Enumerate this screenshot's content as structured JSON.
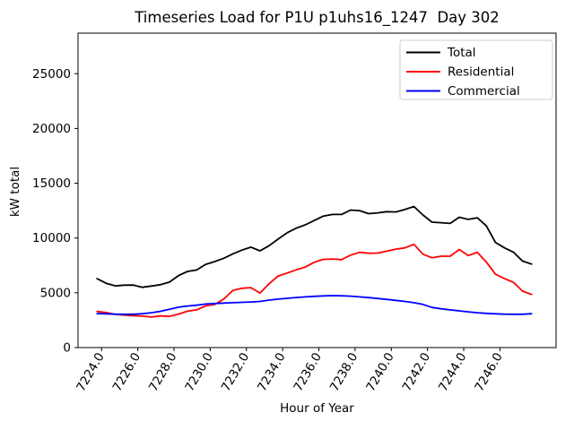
{
  "figure": {
    "title": "Timeseries Load for P1U p1uhs16_1247  Day 302",
    "xlabel": "Hour of Year",
    "ylabel": "kW total"
  },
  "chart_data": {
    "type": "line",
    "title": "Timeseries Load for P1U p1uhs16_1247  Day 302",
    "xlabel": "Hour of Year",
    "ylabel": "kW total",
    "grid": false,
    "legend_position": "upper right",
    "xlim": [
      7222.7,
      7249.1
    ],
    "ylim": [
      0,
      28700
    ],
    "x_tick_values": [
      7224,
      7226,
      7228,
      7230,
      7232,
      7234,
      7236,
      7238,
      7240,
      7242,
      7244,
      7246
    ],
    "x_tick_labels": [
      "7224.0",
      "7226.0",
      "7228.0",
      "7230.0",
      "7232.0",
      "7234.0",
      "7236.0",
      "7238.0",
      "7240.0",
      "7242.0",
      "7244.0",
      "7246.0"
    ],
    "y_tick_values": [
      0,
      5000,
      10000,
      15000,
      20000,
      25000
    ],
    "y_tick_labels": [
      "0",
      "5000",
      "10000",
      "15000",
      "20000",
      "25000"
    ],
    "x": [
      7223.75,
      7224.25,
      7224.75,
      7225.25,
      7225.75,
      7226.25,
      7226.75,
      7227.25,
      7227.75,
      7228.25,
      7228.75,
      7229.25,
      7229.75,
      7230.25,
      7230.75,
      7231.25,
      7231.75,
      7232.25,
      7232.75,
      7233.25,
      7233.75,
      7234.25,
      7234.75,
      7235.25,
      7235.75,
      7236.25,
      7236.75,
      7237.25,
      7237.75,
      7238.25,
      7238.75,
      7239.25,
      7239.75,
      7240.25,
      7240.75,
      7241.25,
      7241.75,
      7242.25,
      7242.75,
      7243.25,
      7243.75,
      7244.25,
      7244.75,
      7245.25,
      7245.75,
      7246.25,
      7246.75,
      7247.25,
      7247.75
    ],
    "series": [
      {
        "name": "Total",
        "color": "#000000",
        "values": [
          6300,
          5870,
          5630,
          5700,
          5710,
          5500,
          5620,
          5740,
          5980,
          6570,
          6950,
          7080,
          7600,
          7850,
          8150,
          8550,
          8900,
          9170,
          8830,
          9300,
          9900,
          10480,
          10900,
          11200,
          11600,
          12000,
          12150,
          12150,
          12550,
          12500,
          12220,
          12300,
          12400,
          12380,
          12600,
          12880,
          12100,
          11450,
          11400,
          11330,
          11900,
          11700,
          11850,
          11100,
          9600,
          9100,
          8700,
          7900,
          7620
        ]
      },
      {
        "name": "Residential",
        "color": "#ff0000",
        "values": [
          3300,
          3200,
          3030,
          2970,
          2910,
          2870,
          2790,
          2890,
          2850,
          3060,
          3320,
          3440,
          3800,
          3930,
          4430,
          5220,
          5410,
          5470,
          4980,
          5820,
          6530,
          6800,
          7100,
          7350,
          7790,
          8050,
          8090,
          8030,
          8440,
          8690,
          8610,
          8630,
          8800,
          8990,
          9100,
          9430,
          8520,
          8200,
          8340,
          8340,
          8950,
          8400,
          8700,
          7800,
          6700,
          6300,
          5950,
          5150,
          4850
        ]
      },
      {
        "name": "Commercial",
        "color": "#0000ff",
        "values": [
          3110,
          3080,
          3050,
          3040,
          3040,
          3090,
          3180,
          3310,
          3490,
          3690,
          3790,
          3870,
          3970,
          4020,
          4060,
          4100,
          4130,
          4160,
          4210,
          4330,
          4420,
          4500,
          4570,
          4630,
          4680,
          4720,
          4740,
          4730,
          4690,
          4630,
          4560,
          4480,
          4400,
          4310,
          4210,
          4100,
          3940,
          3660,
          3540,
          3440,
          3350,
          3260,
          3180,
          3120,
          3080,
          3050,
          3040,
          3040,
          3090
        ]
      }
    ]
  }
}
